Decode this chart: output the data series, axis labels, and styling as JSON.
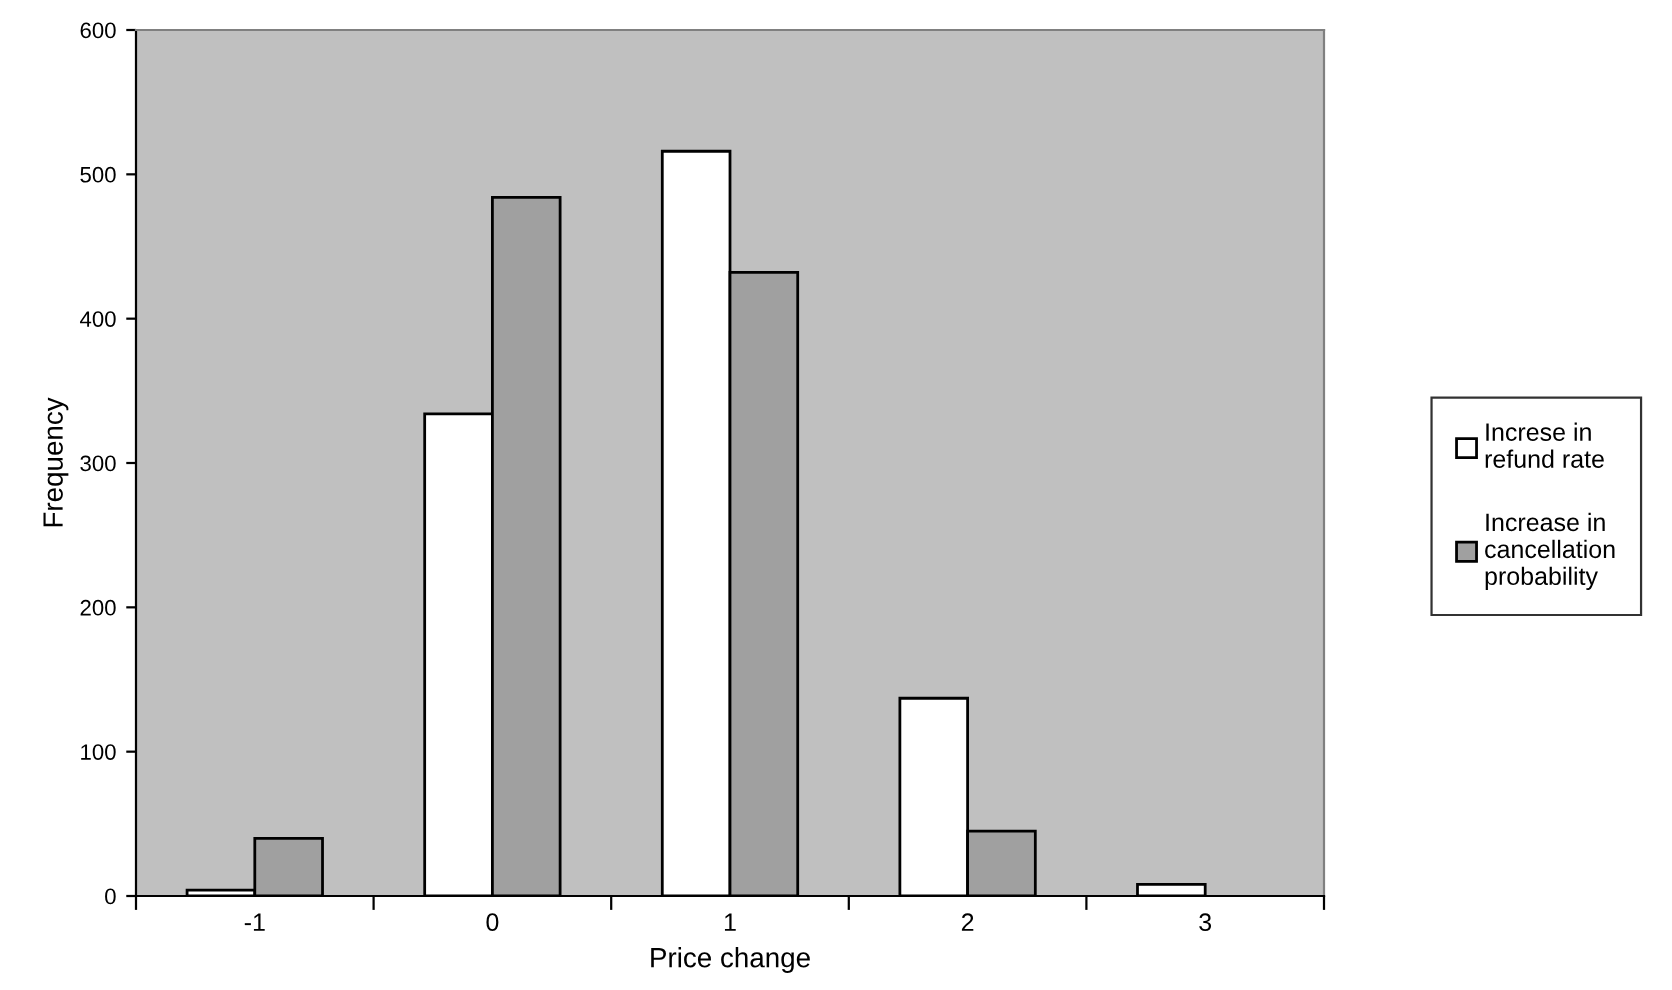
{
  "chart_data": {
    "type": "bar",
    "xlabel": "Price change",
    "ylabel": "Frequency",
    "categories": [
      "-1",
      "0",
      "1",
      "2",
      "3"
    ],
    "series": [
      {
        "name": "Increse in refund rate",
        "color": "#ffffff",
        "values": [
          4,
          334,
          516,
          137,
          8
        ]
      },
      {
        "name": "Increase in cancellation probability",
        "color": "#a0a0a0",
        "values": [
          40,
          484,
          432,
          45,
          null
        ]
      }
    ],
    "ylim": [
      0,
      600
    ],
    "yticks": [
      0,
      100,
      200,
      300,
      400,
      500,
      600
    ],
    "grid": false,
    "legend": "right"
  }
}
